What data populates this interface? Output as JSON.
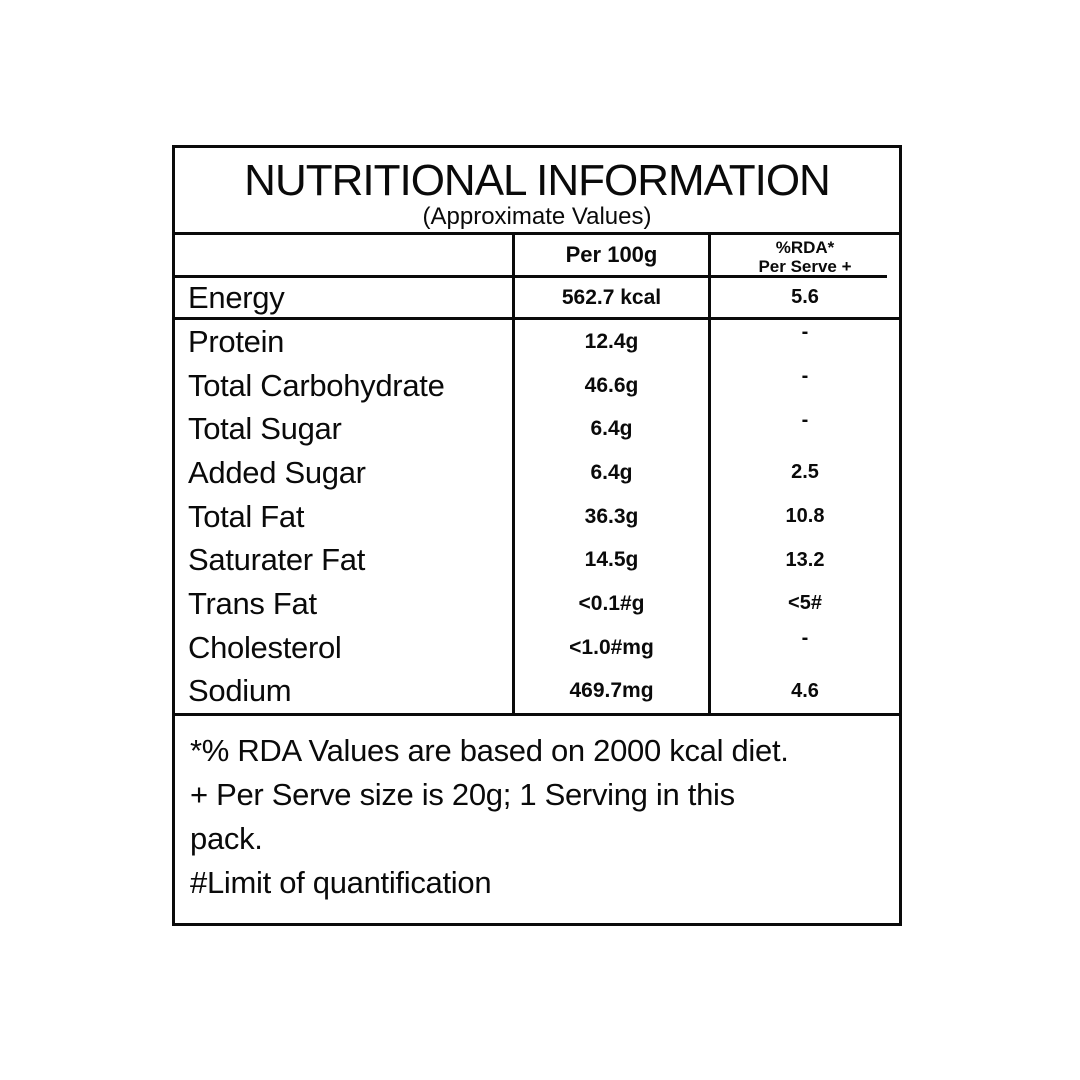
{
  "title": "NUTRITIONAL INFORMATION",
  "subtitle": "(Approximate Values)",
  "columns": {
    "nutrient_header": "",
    "per_100g": "Per 100g",
    "rda_line1": "%RDA*",
    "rda_line2": "Per Serve +"
  },
  "energy_row": {
    "label": "Energy",
    "per_100g": "562.7 kcal",
    "rda": "5.6"
  },
  "rows": [
    {
      "label": "Protein",
      "per_100g": "12.4g",
      "rda": "-"
    },
    {
      "label": "Total Carbohydrate",
      "per_100g": "46.6g",
      "rda": "-"
    },
    {
      "label": "Total Sugar",
      "per_100g": "6.4g",
      "rda": "-"
    },
    {
      "label": "Added Sugar",
      "per_100g": "6.4g",
      "rda": "2.5"
    },
    {
      "label": "Total Fat",
      "per_100g": "36.3g",
      "rda": "10.8"
    },
    {
      "label": "Saturater Fat",
      "per_100g": "14.5g",
      "rda": "13.2"
    },
    {
      "label": "Trans Fat",
      "per_100g": "<0.1#g",
      "rda": "<5#"
    },
    {
      "label": "Cholesterol",
      "per_100g": "<1.0#mg",
      "rda": "-"
    },
    {
      "label": "Sodium",
      "per_100g": "469.7mg",
      "rda": "4.6"
    }
  ],
  "footnotes": [
    "*% RDA Values are based on 2000 kcal diet.",
    "+ Per Serve size is 20g; 1 Serving in this\npack.",
    "#Limit of quantification"
  ],
  "colors": {
    "text": "#0a0a0a",
    "border": "#0a0a0a",
    "background": "#ffffff"
  }
}
